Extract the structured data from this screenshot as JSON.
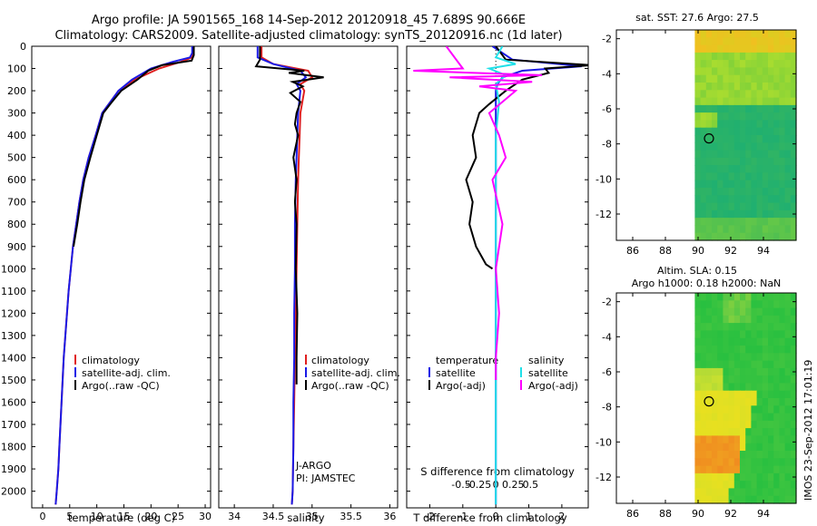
{
  "header": {
    "line1": "Argo profile: JA 5901565_168 14-Sep-2012 20120918_45 7.689S 90.666E",
    "line2": "Climatology: CARS2009. Satellite-adjusted climatology: synTS_20120916.nc (1d later)"
  },
  "colors": {
    "climatology": "#e02020",
    "satellite": "#1a1ae6",
    "argo": "#000000",
    "sat_salinity": "#20e0e8",
    "argo_salinity": "#ff00ff"
  },
  "chart_data": [
    {
      "type": "line",
      "name": "temperature-profile",
      "xlabel": "temperature (deg C)",
      "ylabel": "",
      "xlim": [
        -2,
        31
      ],
      "ylim": [
        2075,
        0
      ],
      "xticks": [
        0,
        5,
        10,
        15,
        20,
        25,
        30
      ],
      "yticks": [
        0,
        100,
        200,
        300,
        400,
        500,
        600,
        700,
        800,
        900,
        1000,
        1100,
        1200,
        1300,
        1400,
        1500,
        1600,
        1700,
        1800,
        1900,
        2000
      ],
      "legend": [
        "climatology",
        "satellite-adj. clim.",
        "Argo(..raw -QC)"
      ],
      "series": [
        {
          "name": "climatology",
          "color_key": "climatology",
          "x": [
            27.8,
            27.8,
            27.6,
            25.5,
            21.5,
            17.0,
            14.0,
            12.5,
            11.0,
            9.8,
            8.5,
            7.5,
            6.8,
            6.2,
            5.6,
            5.2,
            4.8,
            4.5,
            4.2,
            3.9,
            3.5,
            3.1,
            2.9,
            2.6,
            2.4
          ],
          "y": [
            0,
            30,
            50,
            70,
            100,
            150,
            200,
            250,
            300,
            400,
            500,
            600,
            700,
            800,
            900,
            1000,
            1100,
            1200,
            1300,
            1400,
            1600,
            1800,
            1900,
            2000,
            2060
          ]
        },
        {
          "name": "satellite-adj. clim.",
          "color_key": "satellite",
          "x": [
            27.6,
            27.6,
            27.2,
            24.0,
            20.0,
            16.5,
            14.0,
            12.5,
            11.0,
            9.8,
            8.5,
            7.5,
            6.8,
            6.2,
            5.6,
            5.2,
            4.8,
            4.5,
            4.2,
            3.9,
            3.5,
            3.1,
            2.9,
            2.6,
            2.4
          ],
          "y": [
            0,
            30,
            50,
            70,
            100,
            150,
            200,
            250,
            300,
            400,
            500,
            600,
            700,
            800,
            900,
            1000,
            1100,
            1200,
            1300,
            1400,
            1600,
            1800,
            1900,
            2000,
            2060
          ]
        },
        {
          "name": "Argo(..raw -QC)",
          "color_key": "argo",
          "x": [
            27.9,
            27.9,
            27.5,
            22.0,
            19.5,
            17.5,
            14.5,
            12.8,
            11.2,
            10.0,
            8.8,
            7.7,
            7.0,
            6.4,
            5.7
          ],
          "y": [
            0,
            40,
            65,
            85,
            110,
            150,
            200,
            250,
            300,
            400,
            500,
            600,
            700,
            800,
            900
          ]
        }
      ]
    },
    {
      "type": "line",
      "name": "salinity-profile",
      "xlabel": "salinity",
      "xlim": [
        33.8,
        36.1
      ],
      "ylim": [
        2075,
        0
      ],
      "xticks": [
        34,
        34.5,
        35,
        35.5,
        36
      ],
      "legend": [
        "climatology",
        "satellite-adj. clim.",
        "Argo(..raw -QC)"
      ],
      "annotations": [
        "J-ARGO",
        "PI: JAMSTEC"
      ],
      "series": [
        {
          "name": "climatology",
          "color_key": "climatology",
          "x": [
            34.35,
            34.35,
            34.5,
            34.95,
            35.0,
            34.85,
            34.9,
            34.85,
            34.84,
            34.83,
            34.82,
            34.81,
            34.8,
            34.79,
            34.78,
            34.77,
            34.76,
            34.75,
            34.74
          ],
          "y": [
            0,
            50,
            80,
            110,
            140,
            170,
            200,
            300,
            400,
            500,
            600,
            800,
            1000,
            1200,
            1400,
            1600,
            1800,
            2000,
            2060
          ]
        },
        {
          "name": "satellite-adj. clim.",
          "color_key": "satellite",
          "x": [
            34.3,
            34.3,
            34.5,
            34.85,
            34.92,
            34.8,
            34.85,
            34.82,
            34.81,
            34.8,
            34.79,
            34.78,
            34.78,
            34.77,
            34.77,
            34.76,
            34.76,
            34.75,
            34.74
          ],
          "y": [
            0,
            50,
            80,
            110,
            140,
            170,
            200,
            300,
            400,
            500,
            600,
            800,
            1000,
            1200,
            1400,
            1600,
            1800,
            2000,
            2060
          ]
        },
        {
          "name": "Argo(..raw -QC)",
          "color_key": "argo",
          "x": [
            34.33,
            34.33,
            34.28,
            34.9,
            34.7,
            35.15,
            34.75,
            34.88,
            34.72,
            34.85,
            34.8,
            34.78,
            34.82,
            34.76,
            34.8,
            34.78,
            34.8,
            34.79,
            34.81,
            34.8,
            34.8,
            34.8
          ],
          "y": [
            0,
            60,
            90,
            110,
            120,
            140,
            160,
            180,
            210,
            250,
            300,
            350,
            400,
            500,
            600,
            700,
            800,
            1000,
            1200,
            1400,
            1500,
            1520
          ]
        }
      ]
    },
    {
      "type": "line",
      "name": "difference-profile",
      "xlabel": "T difference from climatology",
      "xlim": [
        -2.7,
        2.8
      ],
      "ylim": [
        2075,
        0
      ],
      "xticks": [
        -2,
        -1,
        0,
        1,
        2
      ],
      "top_axis_label": "S difference from climatology",
      "top_ticks": [
        "-0.5",
        "-0.25",
        "0",
        "0.25",
        "0.5"
      ],
      "legend": [
        {
          "group": "temperature",
          "items": [
            "satellite",
            "Argo(-adj)"
          ]
        },
        {
          "group": "salinity",
          "items": [
            "satellite",
            "Argo(-adj)"
          ]
        }
      ],
      "series": [
        {
          "name": "temperature satellite",
          "color_key": "satellite",
          "x": [
            -0.1,
            0.5,
            2.6,
            0.8,
            0.2,
            0.05,
            0.0,
            0.0,
            0.0,
            0.0,
            0.0,
            0.0,
            0.0
          ],
          "y": [
            0,
            60,
            90,
            110,
            140,
            170,
            200,
            300,
            500,
            800,
            1200,
            1600,
            2060
          ]
        },
        {
          "name": "temperature Argo(-adj)",
          "color_key": "argo",
          "x": [
            0.0,
            0.3,
            2.9,
            1.5,
            1.6,
            0.8,
            0.3,
            -0.2,
            -0.5,
            -0.7,
            -0.6,
            -0.9,
            -0.7,
            -0.8,
            -0.6,
            -0.3,
            -0.1
          ],
          "y": [
            0,
            60,
            85,
            100,
            120,
            150,
            200,
            260,
            300,
            400,
            500,
            600,
            700,
            800,
            900,
            980,
            1000
          ]
        },
        {
          "name": "salinity satellite",
          "color_key": "sat_salinity",
          "x": [
            0.2,
            0.0,
            0.6,
            -0.2,
            0.3,
            0.0,
            0.1,
            0.0,
            0.0,
            0.0,
            0.0,
            0.0,
            0.0
          ],
          "y": [
            0,
            50,
            80,
            100,
            130,
            170,
            250,
            400,
            600,
            900,
            1300,
            1700,
            2060
          ]
        },
        {
          "name": "salinity Argo(-adj)",
          "color_key": "argo_salinity",
          "x": [
            -1.5,
            -1.0,
            -2.5,
            1.4,
            -1.4,
            1.1,
            -0.5,
            0.6,
            -0.2,
            0.1,
            0.3,
            -0.1,
            0.2,
            0.0,
            0.1,
            0.0,
            0.0
          ],
          "y": [
            0,
            100,
            110,
            130,
            140,
            160,
            180,
            200,
            300,
            400,
            500,
            600,
            800,
            1000,
            1200,
            1400,
            1500
          ]
        }
      ]
    },
    {
      "type": "heatmap",
      "name": "sst-map",
      "title": "sat. SST: 27.6 Argo: 27.5",
      "xlim": [
        85,
        96
      ],
      "ylim": [
        -13.5,
        -1.5
      ],
      "xticks": [
        86,
        88,
        90,
        92,
        94
      ],
      "yticks": [
        -2,
        -4,
        -6,
        -8,
        -10,
        -12
      ],
      "data_west_limit": 89.8,
      "argo_position": {
        "lon": 90.666,
        "lat": -7.689
      }
    },
    {
      "type": "heatmap",
      "name": "sla-map",
      "title_line1": "Altim. SLA: 0.15",
      "title_line2": "Argo h1000: 0.18 h2000: NaN",
      "xlim": [
        85,
        96
      ],
      "ylim": [
        -13.5,
        -1.5
      ],
      "xticks": [
        86,
        88,
        90,
        92,
        94
      ],
      "yticks": [
        -2,
        -4,
        -6,
        -8,
        -10,
        -12
      ],
      "data_west_limit": 89.8,
      "argo_position": {
        "lon": 90.666,
        "lat": -7.689
      }
    }
  ],
  "footer": {
    "vertical_label": "IMOS 23-Sep-2012 17:01:19"
  }
}
